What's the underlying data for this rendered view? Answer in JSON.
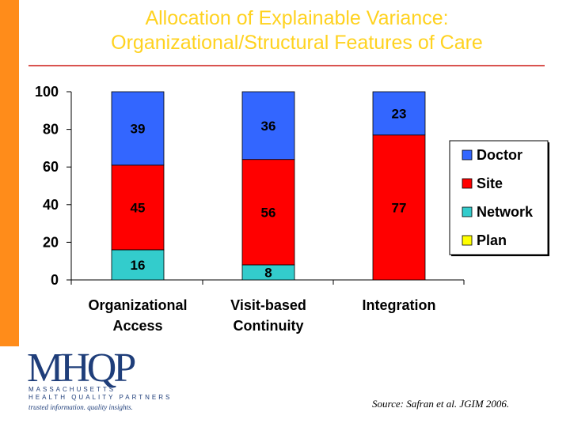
{
  "slide": {
    "title_line1": "Allocation of Explainable Variance:",
    "title_line2": "Organizational/Structural Features of Care",
    "source": "Source:  Safran et al.  JGIM 2006.",
    "logo": {
      "mark": "MHQP",
      "line1": "MASSACHUSETTS",
      "line2": "HEALTH QUALITY PARTNERS",
      "tagline": "trusted information. quality insights."
    },
    "colors": {
      "accent_bar": "#ff8c1a",
      "title": "#ffd21f",
      "rule": "#d9534f"
    }
  },
  "chart_data": {
    "type": "bar",
    "stacked": true,
    "categories": [
      [
        "Organizational",
        "Access"
      ],
      [
        "Visit-based",
        "Continuity"
      ],
      [
        "Integration"
      ]
    ],
    "series": [
      {
        "name": "Plan",
        "color": "#ffff00",
        "values": [
          0,
          0,
          0
        ]
      },
      {
        "name": "Network",
        "color": "#33cccc",
        "values": [
          16,
          8,
          0
        ]
      },
      {
        "name": "Site",
        "color": "#ff0000",
        "values": [
          45,
          56,
          77
        ]
      },
      {
        "name": "Doctor",
        "color": "#3366ff",
        "values": [
          39,
          36,
          23
        ]
      }
    ],
    "legend_order": [
      "Doctor",
      "Site",
      "Network",
      "Plan"
    ],
    "yticks": [
      0,
      20,
      40,
      60,
      80,
      100
    ],
    "ylim": [
      0,
      100
    ],
    "legend_position": "right",
    "grid": false,
    "title": "",
    "xlabel": "",
    "ylabel": ""
  }
}
